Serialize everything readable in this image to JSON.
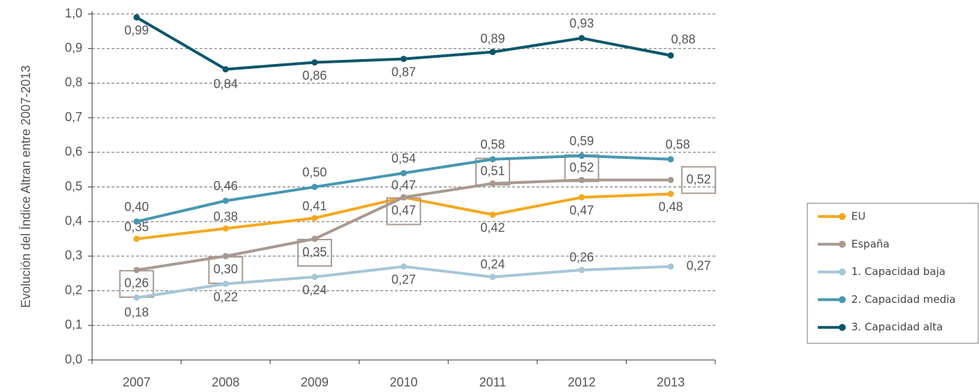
{
  "chart_data": {
    "type": "line",
    "y_axis_label": "Evolución del Índice Altran entre 2007-2013",
    "categories": [
      "2007",
      "2008",
      "2009",
      "2010",
      "2011",
      "2012",
      "2013"
    ],
    "ylim": [
      0,
      1
    ],
    "yticks": [
      {
        "value": 0,
        "label": "0,0"
      },
      {
        "value": 0.1,
        "label": "0,1"
      },
      {
        "value": 0.2,
        "label": "0,2"
      },
      {
        "value": 0.3,
        "label": "0,3"
      },
      {
        "value": 0.4,
        "label": "0,4"
      },
      {
        "value": 0.5,
        "label": "0,5"
      },
      {
        "value": 0.6,
        "label": "0,6"
      },
      {
        "value": 0.7,
        "label": "0,7"
      },
      {
        "value": 0.8,
        "label": "0,8"
      },
      {
        "value": 0.9,
        "label": "0,9"
      },
      {
        "value": 1,
        "label": "1,0"
      }
    ],
    "grid": true,
    "legend": "right",
    "series": [
      {
        "name": "EU",
        "color": "#f5a81e",
        "values": [
          0.35,
          0.38,
          0.41,
          0.47,
          0.42,
          0.47,
          0.48
        ],
        "value_labels": [
          "0,35",
          "0,38",
          "0,41",
          "0,47",
          "0,42",
          "0,47",
          "0,48"
        ]
      },
      {
        "name": "España",
        "color": "#a8998f",
        "values": [
          0.26,
          0.3,
          0.35,
          0.47,
          0.51,
          0.52,
          0.52
        ],
        "value_labels": [
          "0,26",
          "0,30",
          "0,35",
          "0,47",
          "0,51",
          "0,52",
          "0,52"
        ]
      },
      {
        "name": "1. Capacidad baja",
        "color": "#a5c7d6",
        "values": [
          0.18,
          0.22,
          0.24,
          0.27,
          0.24,
          0.26,
          0.27
        ],
        "value_labels": [
          "0,18",
          "0,22",
          "0,24",
          "0,27",
          "0,24",
          "0,26",
          "0,27"
        ]
      },
      {
        "name": "2. Capacidad media",
        "color": "#4797b2",
        "values": [
          0.4,
          0.46,
          0.5,
          0.54,
          0.58,
          0.59,
          0.58
        ],
        "value_labels": [
          "0,40",
          "0,46",
          "0,50",
          "0,54",
          "0,58",
          "0,59",
          "0,58"
        ]
      },
      {
        "name": "3. Capacidad alta",
        "color": "#0b566b",
        "values": [
          0.99,
          0.84,
          0.86,
          0.87,
          0.89,
          0.93,
          0.88
        ],
        "value_labels": [
          "0,99",
          "0,84",
          "0,86",
          "0,87",
          "0,89",
          "0,93",
          "0,88"
        ]
      }
    ]
  }
}
